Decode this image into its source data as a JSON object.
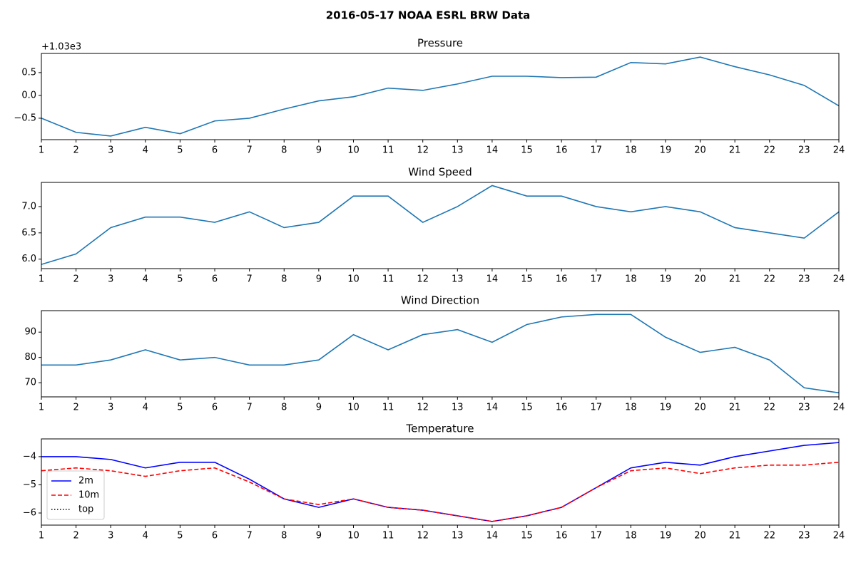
{
  "title": "2016-05-17 NOAA ESRL BRW Data",
  "chart_data": [
    {
      "type": "line",
      "title": "Pressure",
      "y_offset_label": "+1.03e3",
      "x": [
        1,
        2,
        3,
        4,
        5,
        6,
        7,
        8,
        9,
        10,
        11,
        12,
        13,
        14,
        15,
        16,
        17,
        18,
        19,
        20,
        21,
        22,
        23,
        24
      ],
      "series": [
        {
          "name": "Pressure",
          "color": "#1f77b4",
          "dash": "solid",
          "values": [
            -0.5,
            -0.81,
            -0.89,
            -0.7,
            -0.84,
            -0.56,
            -0.5,
            -0.3,
            -0.12,
            -0.03,
            0.16,
            0.11,
            0.25,
            0.42,
            0.42,
            0.39,
            0.4,
            0.72,
            0.69,
            0.84,
            0.63,
            0.45,
            0.22,
            -0.23
          ]
        }
      ],
      "xlim": [
        1,
        24
      ],
      "xticks": [
        1,
        2,
        3,
        4,
        5,
        6,
        7,
        8,
        9,
        10,
        11,
        12,
        13,
        14,
        15,
        16,
        17,
        18,
        19,
        20,
        21,
        22,
        23,
        24
      ],
      "ylim": [
        -0.97,
        0.92
      ],
      "yticks": [
        {
          "value": -0.5,
          "label": "−0.5"
        },
        {
          "value": 0,
          "label": "0.0"
        },
        0.5
      ],
      "legend": false
    },
    {
      "type": "line",
      "title": "Wind Speed",
      "x": [
        1,
        2,
        3,
        4,
        5,
        6,
        7,
        8,
        9,
        10,
        11,
        12,
        13,
        14,
        15,
        16,
        17,
        18,
        19,
        20,
        21,
        22,
        23,
        24
      ],
      "series": [
        {
          "name": "Wind Speed",
          "color": "#1f77b4",
          "dash": "solid",
          "values": [
            5.9,
            6.1,
            6.6,
            6.8,
            6.8,
            6.7,
            6.9,
            6.6,
            6.7,
            7.2,
            7.2,
            6.7,
            7.0,
            7.4,
            7.2,
            7.2,
            7.0,
            6.9,
            7.0,
            6.9,
            6.6,
            6.5,
            6.4,
            6.9
          ]
        }
      ],
      "xlim": [
        1,
        24
      ],
      "xticks": [
        1,
        2,
        3,
        4,
        5,
        6,
        7,
        8,
        9,
        10,
        11,
        12,
        13,
        14,
        15,
        16,
        17,
        18,
        19,
        20,
        21,
        22,
        23,
        24
      ],
      "ylim": [
        5.82,
        7.46
      ],
      "yticks": [
        {
          "value": 6,
          "label": "6.0"
        },
        6.5,
        {
          "value": 7,
          "label": "7.0"
        }
      ],
      "legend": false
    },
    {
      "type": "line",
      "title": "Wind Direction",
      "x": [
        1,
        2,
        3,
        4,
        5,
        6,
        7,
        8,
        9,
        10,
        11,
        12,
        13,
        14,
        15,
        16,
        17,
        18,
        19,
        20,
        21,
        22,
        23,
        24
      ],
      "series": [
        {
          "name": "Wind Direction",
          "color": "#1f77b4",
          "dash": "solid",
          "values": [
            77,
            77,
            79,
            83,
            79,
            80,
            77,
            77,
            79,
            89,
            83,
            89,
            91,
            86,
            93,
            96,
            97,
            97,
            88,
            82,
            84,
            79,
            68,
            66
          ]
        }
      ],
      "xlim": [
        1,
        24
      ],
      "xticks": [
        1,
        2,
        3,
        4,
        5,
        6,
        7,
        8,
        9,
        10,
        11,
        12,
        13,
        14,
        15,
        16,
        17,
        18,
        19,
        20,
        21,
        22,
        23,
        24
      ],
      "ylim": [
        64.4,
        98.5
      ],
      "yticks": [
        70,
        80,
        90
      ],
      "legend": false
    },
    {
      "type": "line",
      "title": "Temperature",
      "x": [
        1,
        2,
        3,
        4,
        5,
        6,
        7,
        8,
        9,
        10,
        11,
        12,
        13,
        14,
        15,
        16,
        17,
        18,
        19,
        20,
        21,
        22,
        23,
        24
      ],
      "series": [
        {
          "name": "2m",
          "color": "#0000ff",
          "dash": "solid",
          "values": [
            -4.0,
            -4.0,
            -4.1,
            -4.4,
            -4.2,
            -4.2,
            -4.8,
            -5.5,
            -5.8,
            -5.5,
            -5.8,
            -5.9,
            -6.1,
            -6.3,
            -6.1,
            -5.8,
            -5.1,
            -4.4,
            -4.2,
            -4.3,
            -4.0,
            -3.8,
            -3.6,
            -3.5
          ]
        },
        {
          "name": "10m",
          "color": "#ff0000",
          "dash": "dashed",
          "values": [
            -4.5,
            -4.4,
            -4.5,
            -4.7,
            -4.5,
            -4.4,
            -4.9,
            -5.5,
            -5.7,
            -5.5,
            -5.8,
            -5.9,
            -6.1,
            -6.3,
            -6.1,
            -5.8,
            -5.1,
            -4.5,
            -4.4,
            -4.6,
            -4.4,
            -4.3,
            -4.3,
            -4.2
          ]
        },
        {
          "name": "top",
          "color": "#000000",
          "dash": "dotted",
          "values": [
            null,
            null,
            null,
            null,
            null,
            null,
            null,
            null,
            null,
            null,
            null,
            null,
            null,
            null,
            null,
            null,
            null,
            null,
            null,
            null,
            null,
            null,
            null,
            null
          ]
        }
      ],
      "xlim": [
        1,
        24
      ],
      "xticks": [
        1,
        2,
        3,
        4,
        5,
        6,
        7,
        8,
        9,
        10,
        11,
        12,
        13,
        14,
        15,
        16,
        17,
        18,
        19,
        20,
        21,
        22,
        23,
        24
      ],
      "ylim": [
        -6.43,
        -3.37
      ],
      "yticks": [
        {
          "value": -6,
          "label": "−6"
        },
        {
          "value": -5,
          "label": "−5"
        },
        {
          "value": -4,
          "label": "−4"
        }
      ],
      "legend": true,
      "legend_loc": "lower left"
    }
  ]
}
